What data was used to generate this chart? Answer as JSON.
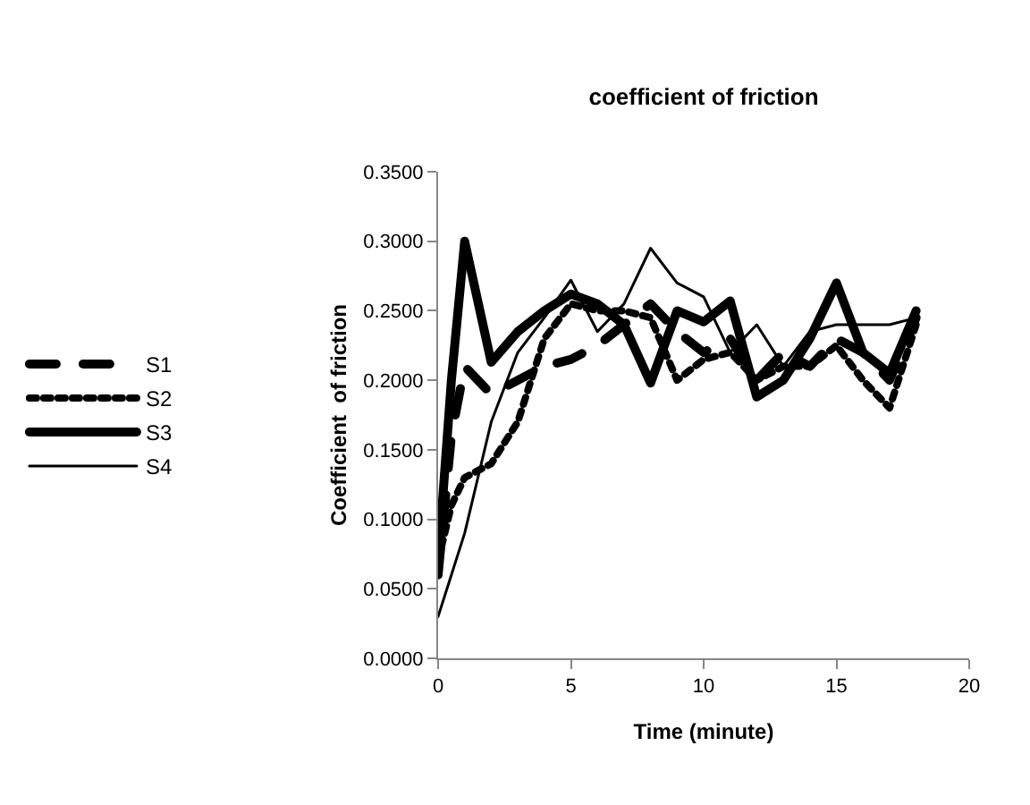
{
  "chart_data": {
    "type": "line",
    "title": "coefficient of friction",
    "xlabel": "Time (minute)",
    "ylabel": "Coefficient  of friction",
    "xlim": [
      0,
      20
    ],
    "xticks": [
      0,
      5,
      10,
      15,
      20
    ],
    "ylim": [
      0,
      0.35
    ],
    "yticks": [
      {
        "value": 0,
        "label": "0.0000"
      },
      {
        "value": 0.05,
        "label": "0.0500"
      },
      {
        "value": 0.1,
        "label": "0.1000"
      },
      {
        "value": 0.15,
        "label": "0.1500"
      },
      {
        "value": 0.2,
        "label": "0.2000"
      },
      {
        "value": 0.25,
        "label": "0.2500"
      },
      {
        "value": 0.3,
        "label": "0.3000"
      },
      {
        "value": 0.35,
        "label": "0.3500"
      }
    ],
    "grid": false,
    "legend": "left",
    "marker": "none",
    "x": [
      0,
      0.5,
      1,
      2,
      3,
      4,
      5,
      6,
      7,
      8,
      9,
      10,
      11,
      12,
      13,
      14,
      15,
      16,
      17,
      18
    ],
    "series": [
      {
        "name": "S1",
        "color": "#000000",
        "line_style": "dashed",
        "values": [
          0.06,
          0.16,
          0.21,
          0.19,
          0.2,
          0.21,
          0.215,
          0.225,
          0.24,
          0.255,
          0.235,
          0.22,
          0.23,
          0.2,
          0.22,
          0.21,
          0.23,
          0.22,
          0.2,
          0.245
        ]
      },
      {
        "name": "S2",
        "color": "#000000",
        "line_style": "dotted",
        "values": [
          0.07,
          0.11,
          0.13,
          0.14,
          0.17,
          0.23,
          0.255,
          0.25,
          0.25,
          0.245,
          0.2,
          0.215,
          0.22,
          0.2,
          0.21,
          0.21,
          0.225,
          0.2,
          0.18,
          0.24
        ]
      },
      {
        "name": "S3",
        "color": "#000000",
        "line_style": "solid",
        "values": [
          0.07,
          0.2,
          0.3,
          0.213,
          0.235,
          0.25,
          0.262,
          0.255,
          0.24,
          0.198,
          0.25,
          0.242,
          0.257,
          0.188,
          0.2,
          0.23,
          0.27,
          0.22,
          0.205,
          0.25
        ]
      },
      {
        "name": "S4",
        "color": "#000000",
        "line_style": "solid",
        "values": [
          0.03,
          0.06,
          0.09,
          0.17,
          0.22,
          0.245,
          0.272,
          0.235,
          0.255,
          0.295,
          0.27,
          0.26,
          0.22,
          0.24,
          0.21,
          0.235,
          0.24,
          0.24,
          0.24,
          0.245
        ]
      }
    ]
  }
}
